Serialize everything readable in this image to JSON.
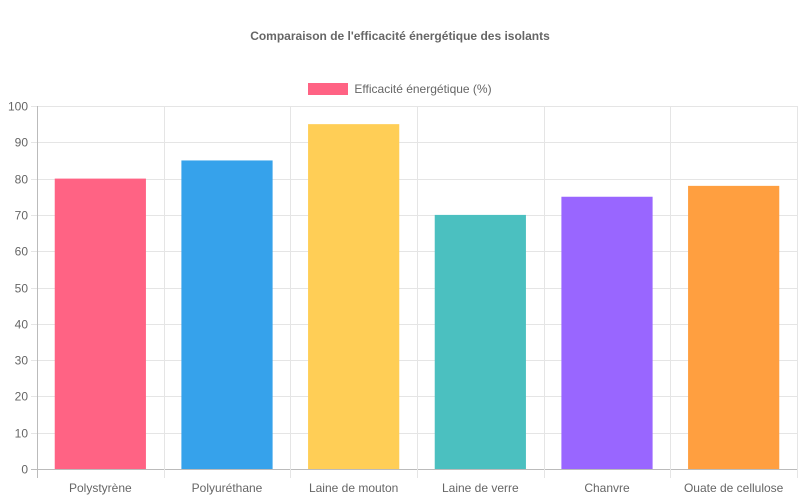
{
  "chart_data": {
    "type": "bar",
    "title": "Comparaison de l'efficacité énergétique des isolants",
    "categories": [
      "Polystyrène",
      "Polyuréthane",
      "Laine de mouton",
      "Laine de verre",
      "Chanvre",
      "Ouate de cellulose"
    ],
    "series": [
      {
        "name": "Efficacité énergétique (%)",
        "values": [
          80,
          85,
          95,
          70,
          75,
          78
        ]
      }
    ],
    "colors": [
      "#ff6384",
      "#36a2eb",
      "#ffce56",
      "#4bc0c0",
      "#9966ff",
      "#ff9f40"
    ],
    "xlabel": "",
    "ylabel": "",
    "ylim": [
      0,
      100
    ],
    "yticks": [
      0,
      10,
      20,
      30,
      40,
      50,
      60,
      70,
      80,
      90,
      100
    ],
    "grid": true,
    "legend_position": "top"
  },
  "legend": {
    "label": "Efficacité énergétique (%)",
    "color": "#ff6384"
  }
}
